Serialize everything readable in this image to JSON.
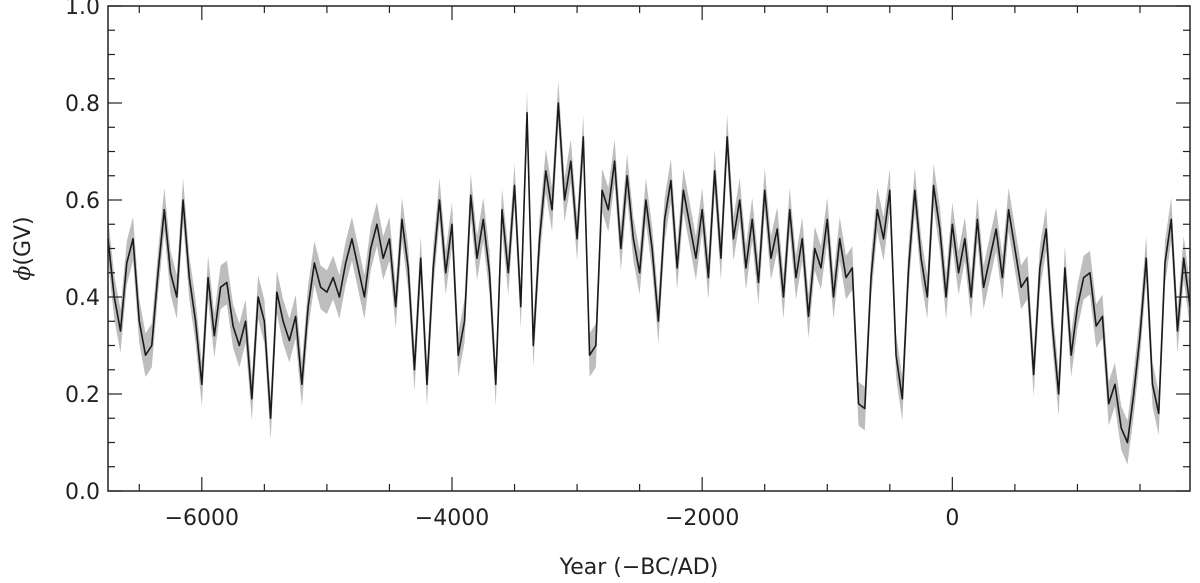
{
  "chart_data": {
    "type": "line",
    "title": "",
    "xlabel": "Year (−BC/AD)",
    "ylabel": "(GV)",
    "ylabel_symbol": "ϕ",
    "xlim": [
      -6750,
      1900
    ],
    "ylim": [
      0.0,
      1.0
    ],
    "xticks": [
      -6000,
      -4000,
      -2000,
      0
    ],
    "xtick_labels": [
      "−6000",
      "−4000",
      "−2000",
      "0"
    ],
    "yticks": [
      0.0,
      0.2,
      0.4,
      0.6,
      0.8,
      1.0
    ],
    "ytick_labels": [
      "0.0",
      "0.2",
      "0.4",
      "0.6",
      "0.8",
      "1.0"
    ],
    "grid": false,
    "series": [
      {
        "style": "line with shaded uncertainty band",
        "color": "#1a1a1a",
        "band_color": "#bdbdbd",
        "x": [
          -6750,
          -6700,
          -6650,
          -6600,
          -6550,
          -6500,
          -6450,
          -6400,
          -6350,
          -6300,
          -6250,
          -6200,
          -6150,
          -6100,
          -6050,
          -6000,
          -5950,
          -5900,
          -5850,
          -5800,
          -5750,
          -5700,
          -5650,
          -5600,
          -5550,
          -5500,
          -5450,
          -5400,
          -5350,
          -5300,
          -5250,
          -5200,
          -5150,
          -5100,
          -5050,
          -5000,
          -4950,
          -4900,
          -4850,
          -4800,
          -4750,
          -4700,
          -4650,
          -4600,
          -4550,
          -4500,
          -4450,
          -4400,
          -4350,
          -4300,
          -4250,
          -4200,
          -4150,
          -4100,
          -4050,
          -4000,
          -3950,
          -3900,
          -3850,
          -3800,
          -3750,
          -3700,
          -3650,
          -3600,
          -3550,
          -3500,
          -3450,
          -3400,
          -3350,
          -3300,
          -3250,
          -3200,
          -3150,
          -3100,
          -3050,
          -3000,
          -2950,
          -2900,
          -2850,
          -2800,
          -2750,
          -2700,
          -2650,
          -2600,
          -2550,
          -2500,
          -2450,
          -2400,
          -2350,
          -2300,
          -2250,
          -2200,
          -2150,
          -2100,
          -2050,
          -2000,
          -1950,
          -1900,
          -1850,
          -1800,
          -1750,
          -1700,
          -1650,
          -1600,
          -1550,
          -1500,
          -1450,
          -1400,
          -1350,
          -1300,
          -1250,
          -1200,
          -1150,
          -1100,
          -1050,
          -1000,
          -950,
          -900,
          -850,
          -800,
          -750,
          -700,
          -650,
          -600,
          -550,
          -500,
          -450,
          -400,
          -350,
          -300,
          -250,
          -200,
          -150,
          -100,
          -50,
          0,
          50,
          100,
          150,
          200,
          250,
          300,
          350,
          400,
          450,
          500,
          550,
          600,
          650,
          700,
          750,
          800,
          850,
          900,
          950,
          1000,
          1050,
          1100,
          1150,
          1200,
          1250,
          1300,
          1350,
          1400,
          1450,
          1500,
          1550,
          1600,
          1650,
          1700,
          1750,
          1800,
          1850,
          1900
        ],
        "y": [
          0.52,
          0.4,
          0.33,
          0.47,
          0.52,
          0.35,
          0.28,
          0.3,
          0.45,
          0.58,
          0.45,
          0.4,
          0.6,
          0.44,
          0.35,
          0.22,
          0.44,
          0.32,
          0.42,
          0.43,
          0.34,
          0.3,
          0.35,
          0.19,
          0.4,
          0.35,
          0.15,
          0.41,
          0.35,
          0.31,
          0.36,
          0.22,
          0.38,
          0.47,
          0.42,
          0.41,
          0.44,
          0.4,
          0.47,
          0.52,
          0.46,
          0.4,
          0.5,
          0.55,
          0.48,
          0.52,
          0.38,
          0.56,
          0.46,
          0.25,
          0.48,
          0.22,
          0.46,
          0.6,
          0.45,
          0.55,
          0.28,
          0.35,
          0.61,
          0.48,
          0.56,
          0.45,
          0.22,
          0.58,
          0.45,
          0.63,
          0.38,
          0.78,
          0.3,
          0.52,
          0.66,
          0.58,
          0.8,
          0.6,
          0.68,
          0.52,
          0.73,
          0.28,
          0.3,
          0.62,
          0.58,
          0.68,
          0.5,
          0.65,
          0.52,
          0.45,
          0.6,
          0.5,
          0.35,
          0.56,
          0.64,
          0.46,
          0.62,
          0.55,
          0.48,
          0.58,
          0.44,
          0.66,
          0.48,
          0.73,
          0.52,
          0.6,
          0.46,
          0.56,
          0.43,
          0.62,
          0.48,
          0.54,
          0.4,
          0.58,
          0.44,
          0.52,
          0.36,
          0.5,
          0.46,
          0.56,
          0.4,
          0.52,
          0.44,
          0.46,
          0.18,
          0.17,
          0.44,
          0.58,
          0.52,
          0.62,
          0.28,
          0.19,
          0.46,
          0.62,
          0.48,
          0.4,
          0.63,
          0.54,
          0.4,
          0.55,
          0.45,
          0.52,
          0.4,
          0.56,
          0.42,
          0.48,
          0.54,
          0.44,
          0.58,
          0.5,
          0.42,
          0.44,
          0.24,
          0.46,
          0.54,
          0.34,
          0.2,
          0.46,
          0.28,
          0.38,
          0.44,
          0.45,
          0.34,
          0.36,
          0.18,
          0.22,
          0.13,
          0.1,
          0.2,
          0.32,
          0.48,
          0.22,
          0.16,
          0.47,
          0.56,
          0.33,
          0.48,
          0.38
        ]
      }
    ]
  }
}
